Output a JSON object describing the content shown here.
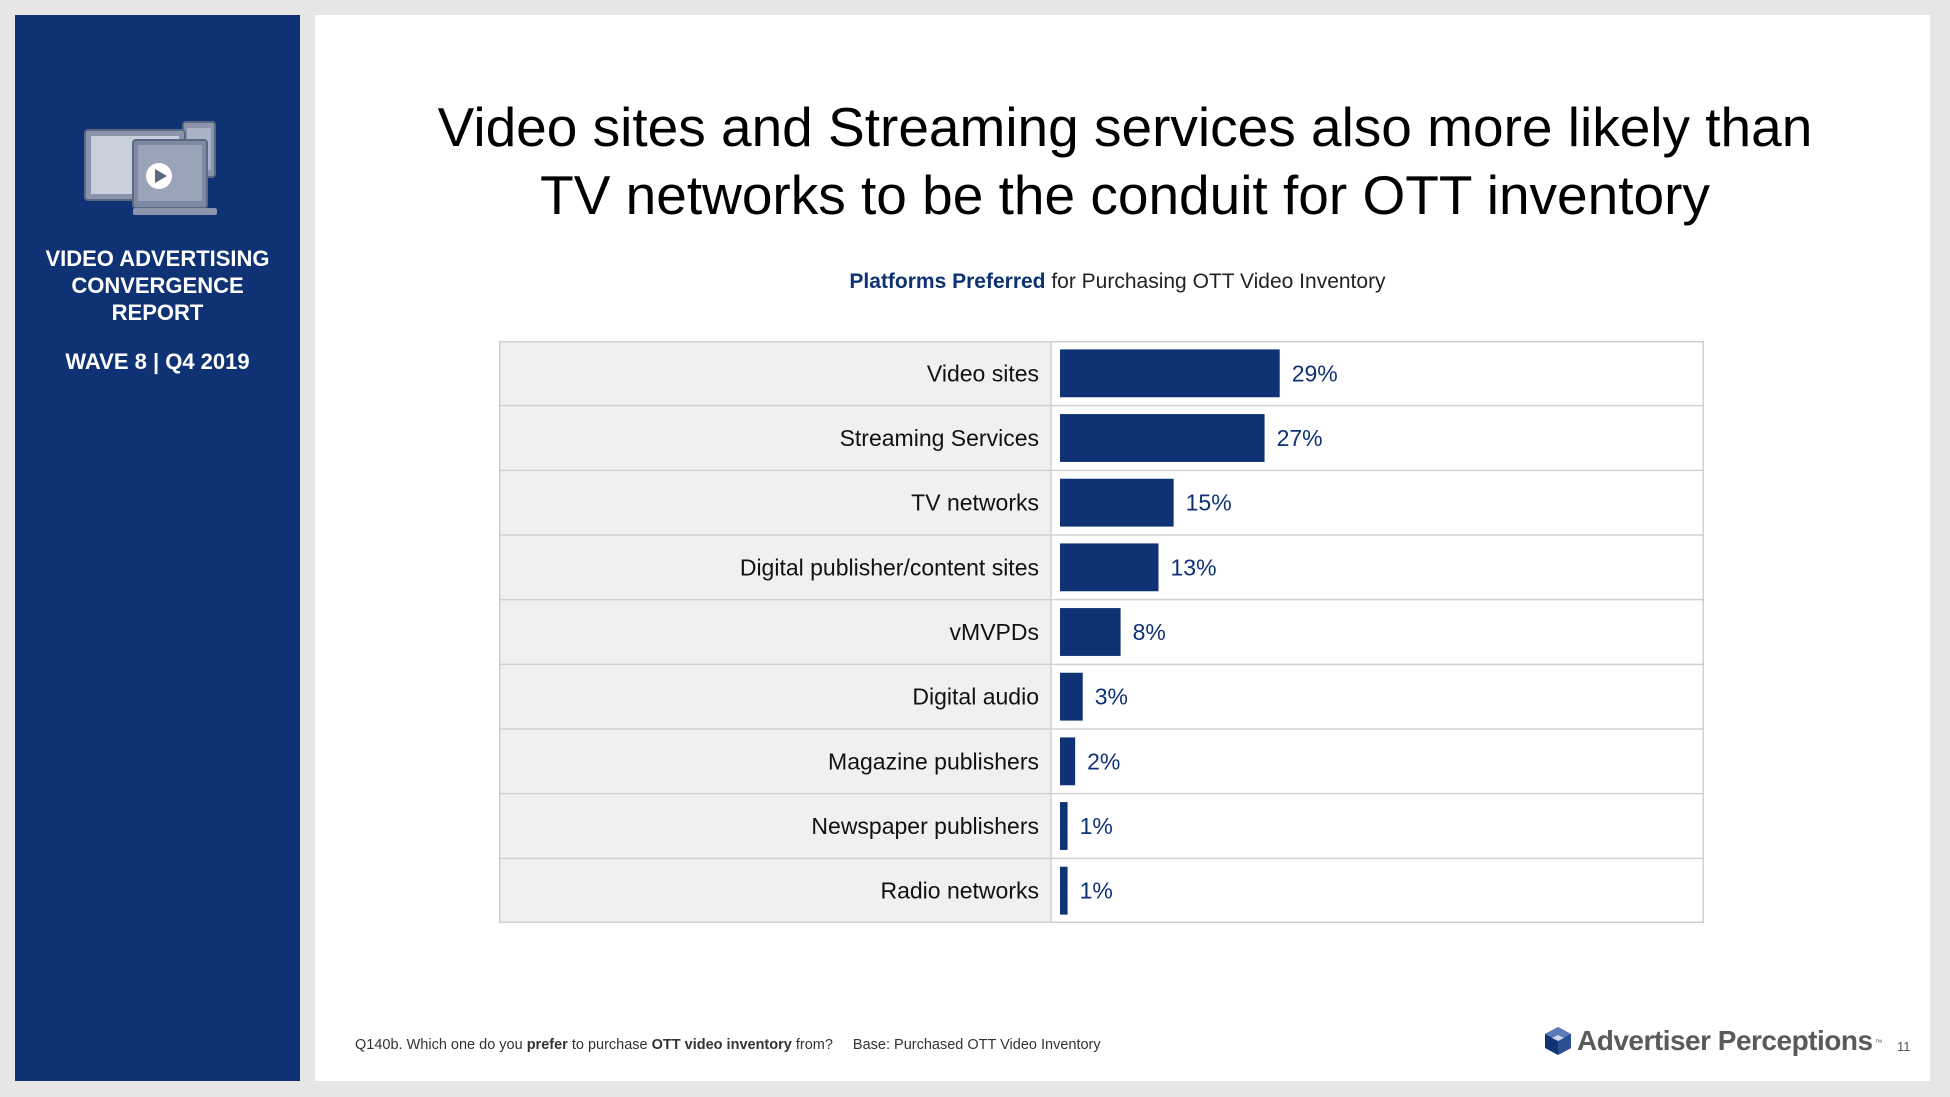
{
  "sidebar": {
    "title": "VIDEO ADVERTISING\nCONVERGENCE\nREPORT",
    "wave": "WAVE 8 | Q4 2019",
    "icon": "tv-devices-play-icon"
  },
  "slide": {
    "title": "Video sites and Streaming services also more likely than\nTV networks to be the conduit for OTT inventory",
    "subtitle_highlight": "Platforms Preferred",
    "subtitle_rest": " for Purchasing OTT Video Inventory",
    "footnote": {
      "q_prefix": "Q140b. Which one do you ",
      "q_bold1": "prefer",
      "q_mid": " to purchase ",
      "q_bold2": "OTT video inventory",
      "q_suffix": " from?",
      "base": "Base: Purchased OTT Video Inventory"
    },
    "brand": "Advertiser Perceptions",
    "brand_tm": "™",
    "page_number": "11"
  },
  "colors": {
    "sidebar_bg": "#0e3274",
    "bar": "#0e3274",
    "row_label_bg": "#f0f0f0",
    "grid": "#d0d0d0"
  },
  "chart_data": {
    "type": "bar",
    "orientation": "horizontal",
    "title": "Platforms Preferred for Purchasing OTT Video Inventory",
    "categories": [
      "Video sites",
      "Streaming Services",
      "TV networks",
      "Digital publisher/content sites",
      "vMVPDs",
      "Digital audio",
      "Magazine publishers",
      "Newspaper publishers",
      "Radio networks"
    ],
    "values": [
      29,
      27,
      15,
      13,
      8,
      3,
      2,
      1,
      1
    ],
    "value_labels": [
      "29%",
      "27%",
      "15%",
      "13%",
      "8%",
      "3%",
      "2%",
      "1%",
      "1%"
    ],
    "unit": "%",
    "xlim": [
      0,
      85
    ],
    "grid": false,
    "legend": "none"
  }
}
